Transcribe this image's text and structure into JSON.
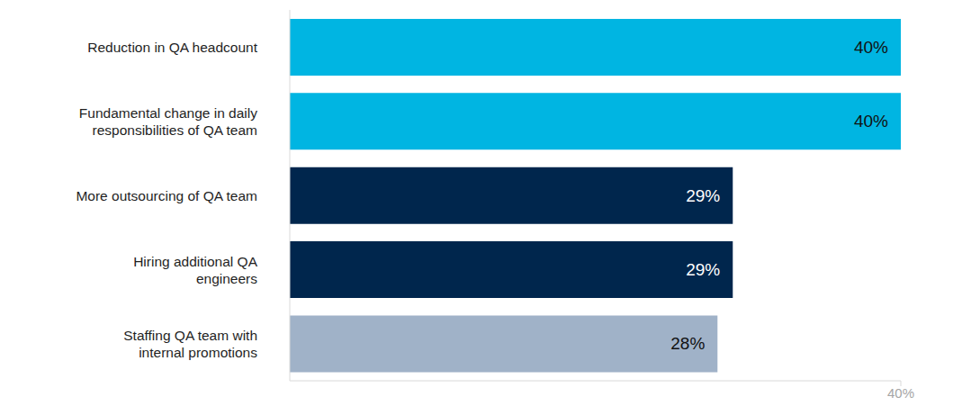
{
  "chart_data": {
    "type": "bar",
    "orientation": "horizontal",
    "categories": [
      "Reduction in QA headcount",
      "Fundamental change in daily responsibilities of QA team",
      "More outsourcing of QA team",
      "Hiring additional QA engineers",
      "Staffing QA team with internal promotions"
    ],
    "values": [
      40,
      40,
      29,
      29,
      28
    ],
    "value_labels": [
      "40%",
      "40%",
      "29%",
      "29%",
      "28%"
    ],
    "colors": [
      "#00b5e2",
      "#00b5e2",
      "#00264d",
      "#00264d",
      "#a0b2c8"
    ],
    "xlim": [
      0,
      40
    ],
    "xticks": [
      {
        "value": 40,
        "label": "40%"
      }
    ],
    "data_labels": true,
    "grid": false
  }
}
